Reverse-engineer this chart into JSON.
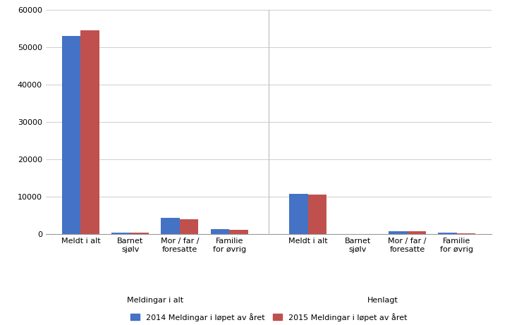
{
  "groups": [
    {
      "section": "Meldingar i alt",
      "label": "Meldt i alt",
      "val_2014": 53000,
      "val_2015": 54500
    },
    {
      "section": "Meldingar i alt",
      "label": "Barnet\nsjølv",
      "val_2014": 300,
      "val_2015": 300
    },
    {
      "section": "Meldingar i alt",
      "label": "Mor / far /\nforesatte",
      "val_2014": 4400,
      "val_2015": 4000
    },
    {
      "section": "Meldingar i alt",
      "label": "Familie\nfor øvrig",
      "val_2014": 1300,
      "val_2015": 1150
    },
    {
      "section": "Henlagt",
      "label": "Meldt i alt",
      "val_2014": 10800,
      "val_2015": 10500
    },
    {
      "section": "Henlagt",
      "label": "Barnet\nsjølv",
      "val_2014": 0,
      "val_2015": 0
    },
    {
      "section": "Henlagt",
      "label": "Mor / far /\nforesatte",
      "val_2014": 800,
      "val_2015": 750
    },
    {
      "section": "Henlagt",
      "label": "Familie\nfor øvrig",
      "val_2014": 300,
      "val_2015": 200
    }
  ],
  "color_2014": "#4472C4",
  "color_2015": "#C0504D",
  "legend_2014": "2014 Meldingar i løpet av året",
  "legend_2015": "2015 Meldingar i løpet av året",
  "ylim": [
    0,
    60000
  ],
  "yticks": [
    0,
    10000,
    20000,
    30000,
    40000,
    50000,
    60000
  ],
  "ytick_labels": [
    "0",
    "10000",
    "20000",
    "30000",
    "40000",
    "50000",
    "60000"
  ],
  "section_labels": [
    "Meldingar i alt",
    "Henlagt"
  ],
  "background_color": "#ffffff",
  "tick_label_fontsize": 8,
  "legend_fontsize": 8,
  "section_label_fontsize": 8
}
